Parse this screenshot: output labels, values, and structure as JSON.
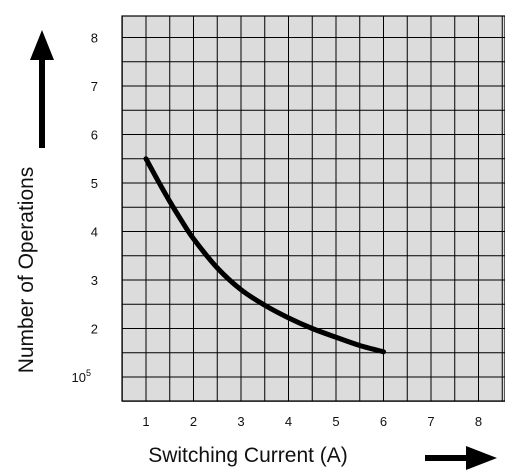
{
  "chart_data": {
    "type": "line",
    "title": "",
    "xlabel": "Switching Current (A)",
    "ylabel": "Number of Operations",
    "x_ticks": [
      "1",
      "2",
      "3",
      "4",
      "5",
      "6",
      "7",
      "8"
    ],
    "y_ticks": [
      {
        "value": 1,
        "label": "10",
        "sup": "5"
      },
      {
        "value": 2,
        "label": "2",
        "sup": ""
      },
      {
        "value": 3,
        "label": "3",
        "sup": ""
      },
      {
        "value": 4,
        "label": "4",
        "sup": ""
      },
      {
        "value": 5,
        "label": "5",
        "sup": ""
      },
      {
        "value": 6,
        "label": "6",
        "sup": ""
      },
      {
        "value": 7,
        "label": "7",
        "sup": ""
      },
      {
        "value": 8,
        "label": "8",
        "sup": ""
      }
    ],
    "xlim": [
      0.5,
      8.5
    ],
    "ylim": [
      0.5,
      8.5
    ],
    "grid": true,
    "plot_background": "#dcdcdc",
    "line_color": "#000000",
    "series": [
      {
        "x": [
          1.0,
          1.25,
          1.5,
          1.75,
          2.0,
          2.5,
          3.0,
          3.5,
          4.0,
          4.5,
          5.0,
          5.5,
          6.0
        ],
        "y": [
          5.5,
          5.05,
          4.62,
          4.22,
          3.85,
          3.25,
          2.8,
          2.48,
          2.22,
          2.0,
          1.82,
          1.65,
          1.52
        ]
      }
    ]
  }
}
